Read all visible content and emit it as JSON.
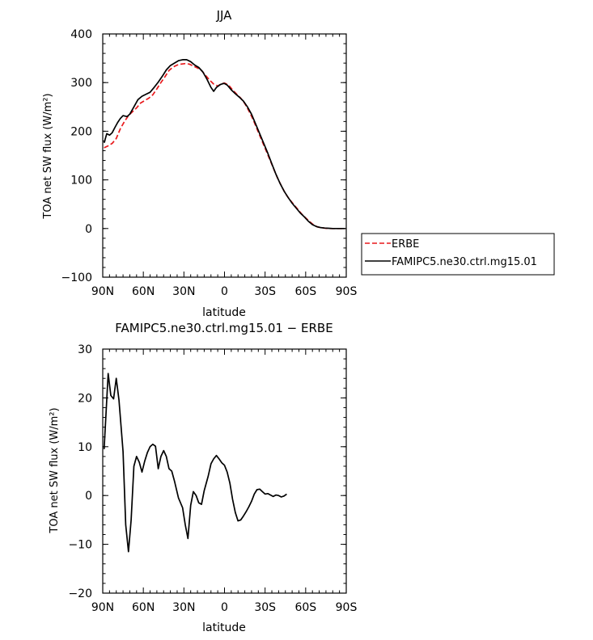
{
  "chart_data": [
    {
      "type": "line",
      "title": "JJA",
      "xlabel": "latitude",
      "ylabel": "TOA net SW flux (W/m²)",
      "xlim": [
        90,
        -90
      ],
      "ylim": [
        -100,
        400
      ],
      "x_ticks": [
        90,
        60,
        30,
        0,
        -30,
        -60,
        -90
      ],
      "x_tick_labels": [
        "90N",
        "60N",
        "30N",
        "0",
        "30S",
        "60S",
        "90S"
      ],
      "y_ticks": [
        -100,
        0,
        100,
        200,
        300,
        400
      ],
      "y_tick_labels": [
        "−100",
        "0",
        "100",
        "200",
        "300",
        "400"
      ],
      "legend_position": "right",
      "series": [
        {
          "name": "ERBE",
          "color": "#e8191c",
          "style": "dashed",
          "points": [
            [
              89,
              166
            ],
            [
              86,
              170
            ],
            [
              83,
              175
            ],
            [
              80,
              185
            ],
            [
              77,
              205
            ],
            [
              74,
              220
            ],
            [
              71,
              232
            ],
            [
              68,
              240
            ],
            [
              65,
              248
            ],
            [
              62,
              258
            ],
            [
              59,
              263
            ],
            [
              56,
              268
            ],
            [
              53,
              275
            ],
            [
              50,
              287
            ],
            [
              47,
              300
            ],
            [
              44,
              312
            ],
            [
              41,
              325
            ],
            [
              38,
              332
            ],
            [
              35,
              336
            ],
            [
              32,
              338
            ],
            [
              29,
              339
            ],
            [
              26,
              338
            ],
            [
              23,
              334
            ],
            [
              20,
              330
            ],
            [
              17,
              325
            ],
            [
              14,
              315
            ],
            [
              11,
              305
            ],
            [
              8,
              297
            ],
            [
              5,
              293
            ],
            [
              2,
              298
            ],
            [
              0,
              299
            ],
            [
              -3,
              295
            ],
            [
              -6,
              285
            ],
            [
              -9,
              276
            ],
            [
              -12,
              268
            ],
            [
              -15,
              257
            ],
            [
              -18,
              242
            ],
            [
              -21,
              225
            ],
            [
              -24,
              205
            ],
            [
              -27,
              185
            ],
            [
              -30,
              165
            ],
            [
              -33,
              145
            ],
            [
              -36,
              125
            ],
            [
              -39,
              105
            ],
            [
              -42,
              88
            ],
            [
              -45,
              72
            ],
            [
              -48,
              60
            ],
            [
              -51,
              50
            ],
            [
              -54,
              40
            ],
            [
              -57,
              30
            ],
            [
              -60,
              22
            ],
            [
              -63,
              14
            ],
            [
              -66,
              7
            ],
            [
              -69,
              3
            ],
            [
              -72,
              1.5
            ],
            [
              -75,
              0.5
            ],
            [
              -78,
              0
            ],
            [
              -81,
              0
            ],
            [
              -84,
              0
            ],
            [
              -87,
              0
            ],
            [
              -89,
              0
            ]
          ]
        },
        {
          "name": "FAMIPC5.ne30.ctrl.mg15.01",
          "color": "#000000",
          "style": "solid",
          "points": [
            [
              89,
              176
            ],
            [
              87,
              195
            ],
            [
              85,
              192
            ],
            [
              83,
              197
            ],
            [
              81,
              208
            ],
            [
              79,
              218
            ],
            [
              77,
              226
            ],
            [
              75,
              232
            ],
            [
              72,
              230
            ],
            [
              70,
              235
            ],
            [
              67,
              250
            ],
            [
              64,
              265
            ],
            [
              61,
              272
            ],
            [
              58,
              276
            ],
            [
              55,
              280
            ],
            [
              52,
              290
            ],
            [
              49,
              301
            ],
            [
              46,
              313
            ],
            [
              43,
              326
            ],
            [
              40,
              335
            ],
            [
              37,
              340
            ],
            [
              34,
              345
            ],
            [
              31,
              347
            ],
            [
              28,
              347
            ],
            [
              25,
              343
            ],
            [
              22,
              336
            ],
            [
              19,
              331
            ],
            [
              16,
              322
            ],
            [
              13,
              307
            ],
            [
              10,
              290
            ],
            [
              8,
              282
            ],
            [
              6,
              290
            ],
            [
              3,
              296
            ],
            [
              1,
              298
            ],
            [
              0,
              298
            ],
            [
              -2,
              295
            ],
            [
              -5,
              285
            ],
            [
              -8,
              277
            ],
            [
              -11,
              270
            ],
            [
              -14,
              262
            ],
            [
              -17,
              250
            ],
            [
              -20,
              235
            ],
            [
              -23,
              215
            ],
            [
              -26,
              195
            ],
            [
              -29,
              175
            ],
            [
              -32,
              155
            ],
            [
              -35,
              133
            ],
            [
              -38,
              112
            ],
            [
              -41,
              93
            ],
            [
              -44,
              77
            ],
            [
              -47,
              64
            ],
            [
              -50,
              52
            ],
            [
              -53,
              42
            ],
            [
              -56,
              32
            ],
            [
              -59,
              24
            ],
            [
              -62,
              15
            ],
            [
              -65,
              8
            ],
            [
              -68,
              4
            ],
            [
              -71,
              2
            ],
            [
              -74,
              1
            ],
            [
              -77,
              0.5
            ],
            [
              -80,
              0
            ],
            [
              -83,
              0
            ],
            [
              -86,
              0
            ],
            [
              -89,
              0
            ]
          ]
        }
      ]
    },
    {
      "type": "line",
      "title": "FAMIPC5.ne30.ctrl.mg15.01 − ERBE",
      "xlabel": "latitude",
      "ylabel": "TOA net SW flux (W/m²)",
      "xlim": [
        90,
        -90
      ],
      "ylim": [
        -20,
        30
      ],
      "x_ticks": [
        90,
        60,
        30,
        0,
        -30,
        -60,
        -90
      ],
      "x_tick_labels": [
        "90N",
        "60N",
        "30N",
        "0",
        "30S",
        "60S",
        "90S"
      ],
      "y_ticks": [
        -20,
        -10,
        0,
        10,
        20,
        30
      ],
      "y_tick_labels": [
        "−20",
        "−10",
        "0",
        "10",
        "20",
        "30"
      ],
      "series": [
        {
          "color": "#000000",
          "style": "solid",
          "points": [
            [
              89,
              9.5
            ],
            [
              86,
              25
            ],
            [
              84,
              20.5
            ],
            [
              82,
              19.8
            ],
            [
              80,
              24
            ],
            [
              78,
              19.5
            ],
            [
              75,
              9
            ],
            [
              73,
              -6
            ],
            [
              71,
              -11.5
            ],
            [
              69,
              -5
            ],
            [
              67,
              6
            ],
            [
              65,
              8
            ],
            [
              63,
              6.8
            ],
            [
              61,
              4.8
            ],
            [
              59,
              7
            ],
            [
              57,
              8.8
            ],
            [
              55,
              10
            ],
            [
              53,
              10.5
            ],
            [
              51,
              10.1
            ],
            [
              49,
              5.5
            ],
            [
              47,
              8
            ],
            [
              45,
              9.2
            ],
            [
              43,
              8
            ],
            [
              41,
              5.5
            ],
            [
              39,
              5
            ],
            [
              37,
              3
            ],
            [
              34,
              -0.5
            ],
            [
              31,
              -2.5
            ],
            [
              29,
              -6
            ],
            [
              27,
              -8.8
            ],
            [
              25,
              -2
            ],
            [
              23,
              0.8
            ],
            [
              21,
              0
            ],
            [
              19,
              -1.5
            ],
            [
              17,
              -1.8
            ],
            [
              15,
              1
            ],
            [
              12,
              4
            ],
            [
              10,
              6.5
            ],
            [
              8,
              7.5
            ],
            [
              6,
              8.2
            ],
            [
              4,
              7.5
            ],
            [
              2,
              6.7
            ],
            [
              0,
              6.2
            ],
            [
              -2,
              4.8
            ],
            [
              -4,
              2.5
            ],
            [
              -6,
              -0.8
            ],
            [
              -8,
              -3.5
            ],
            [
              -10,
              -5.2
            ],
            [
              -12,
              -5
            ],
            [
              -14,
              -4.2
            ],
            [
              -16,
              -3.3
            ],
            [
              -18,
              -2.3
            ],
            [
              -20,
              -1.2
            ],
            [
              -22,
              0.3
            ],
            [
              -24,
              1.2
            ],
            [
              -26,
              1.3
            ],
            [
              -28,
              0.8
            ],
            [
              -30,
              0.3
            ],
            [
              -32,
              0.4
            ],
            [
              -34,
              0.1
            ],
            [
              -36,
              -0.2
            ],
            [
              -38,
              0.1
            ],
            [
              -40,
              0
            ],
            [
              -42,
              -0.3
            ],
            [
              -44,
              -0.1
            ],
            [
              -46,
              0.3
            ]
          ]
        }
      ]
    }
  ]
}
